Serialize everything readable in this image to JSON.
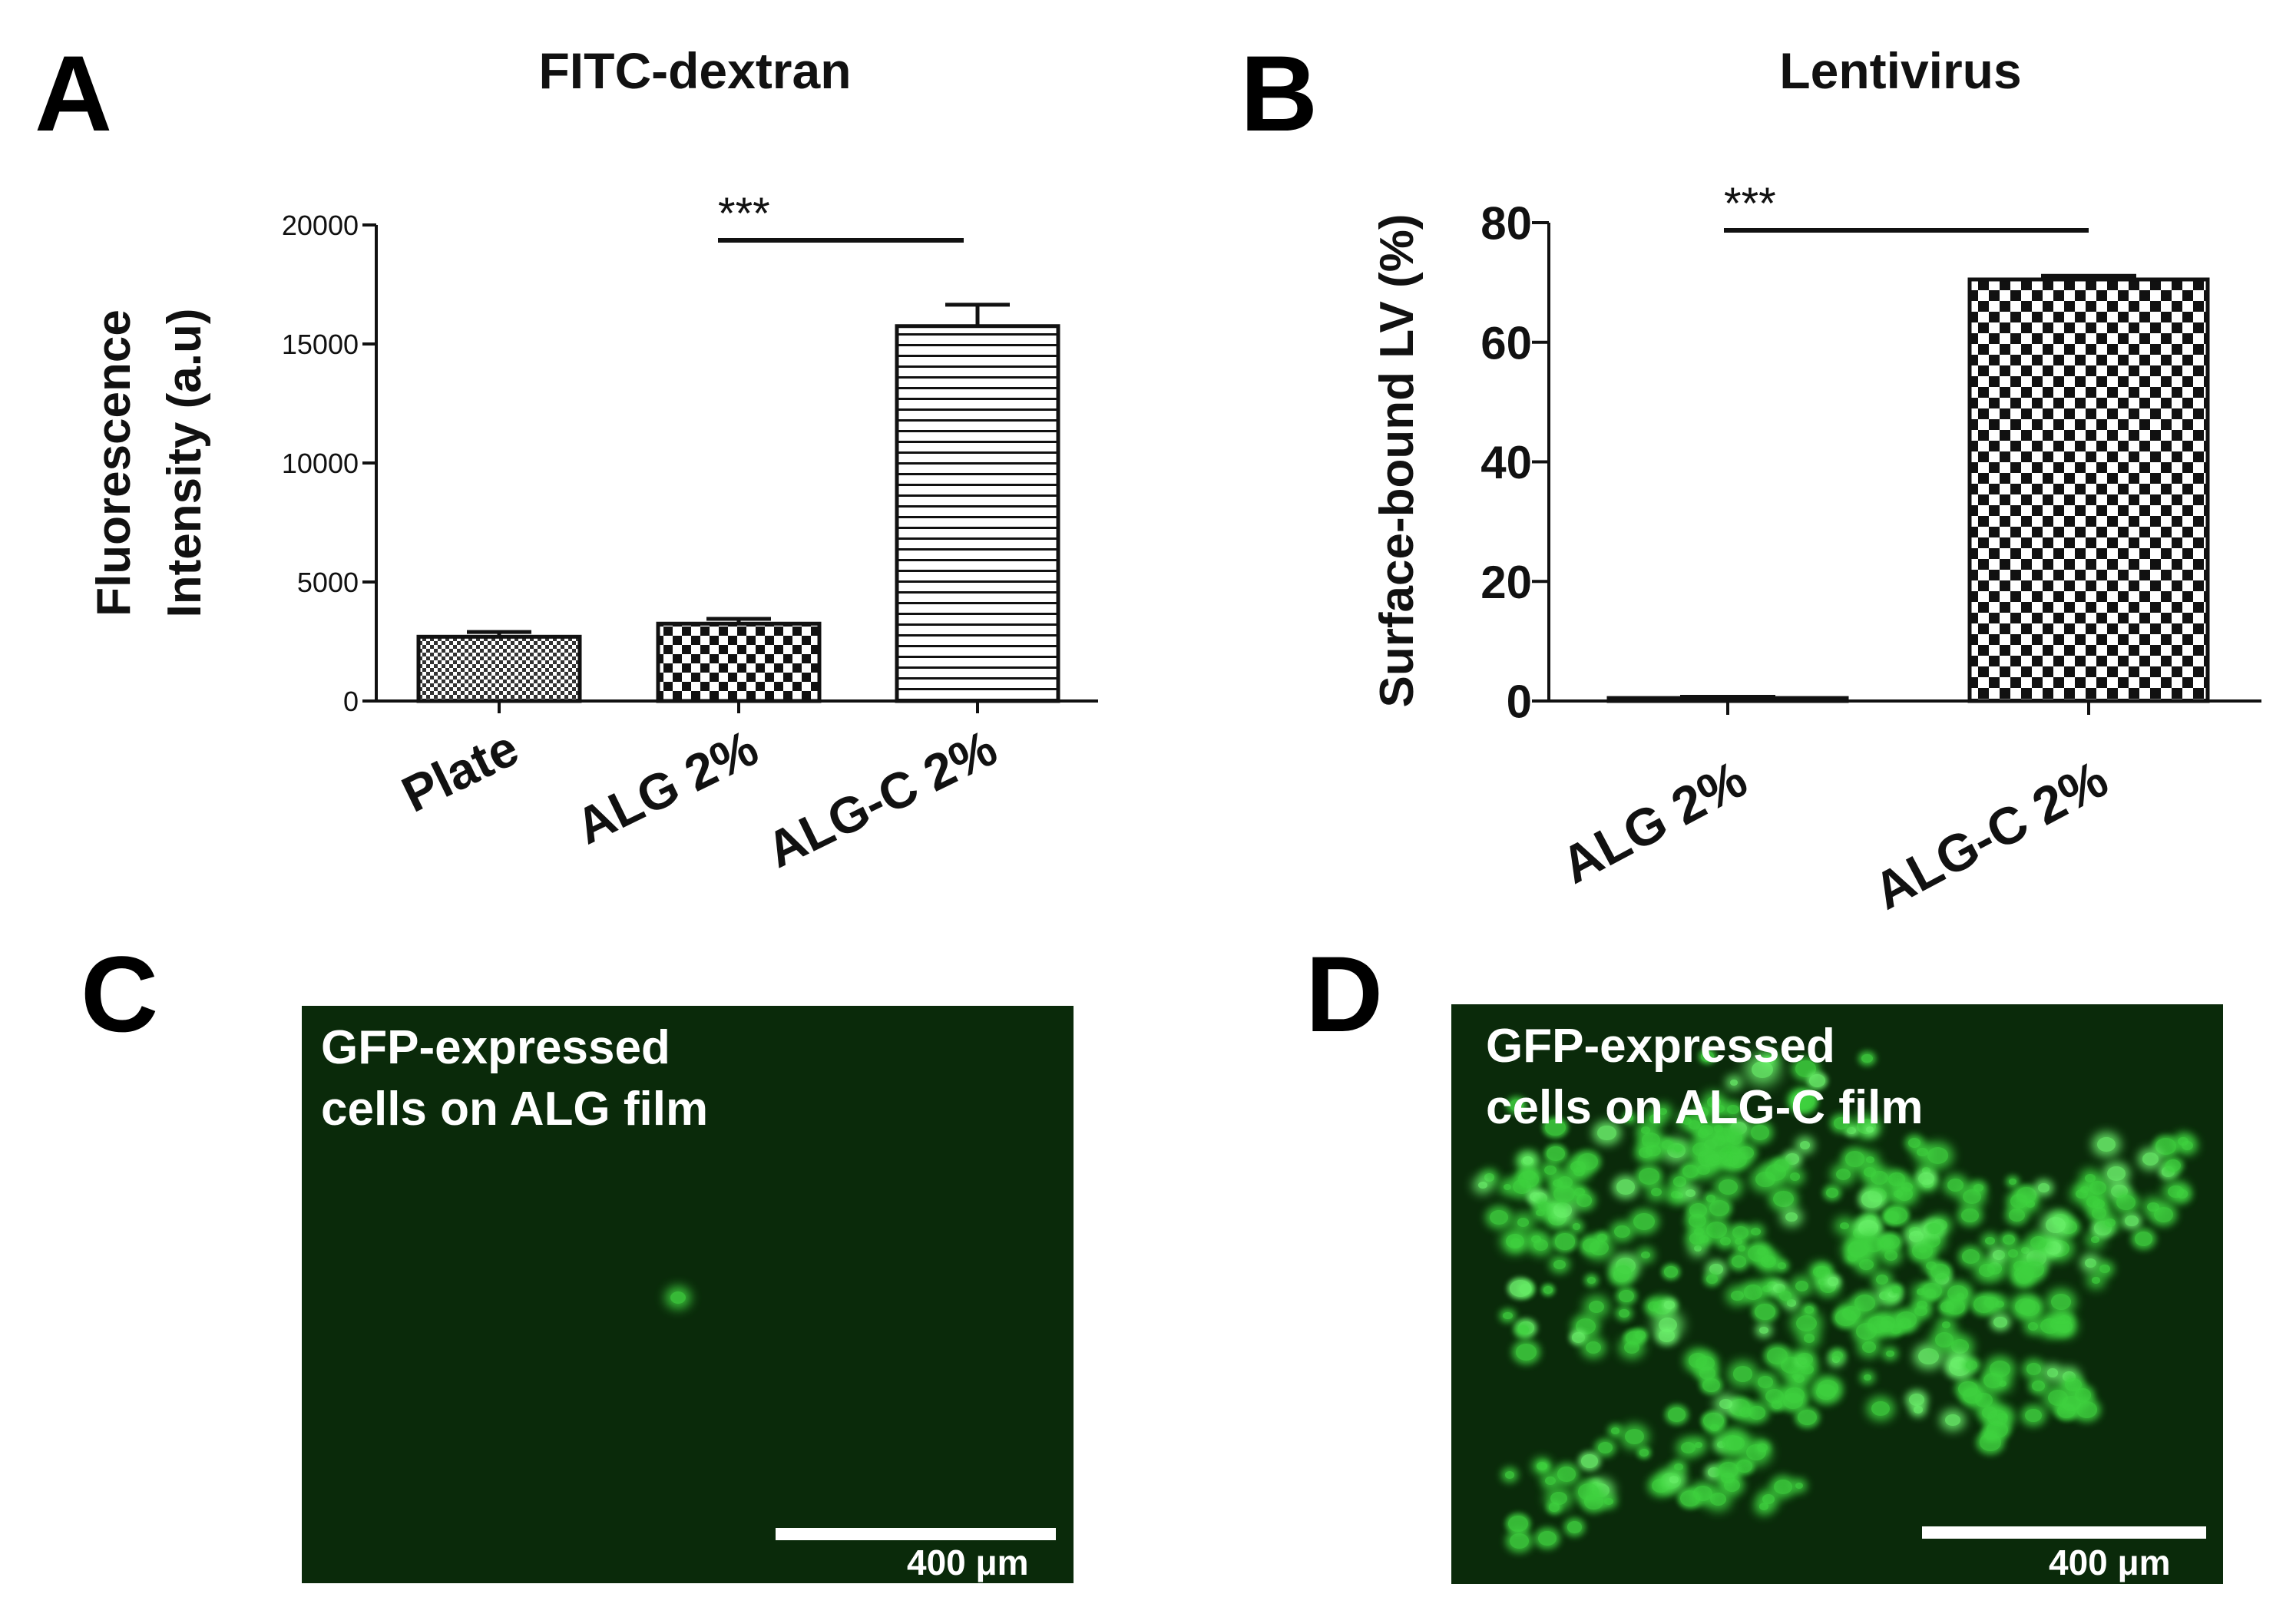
{
  "chart_data": [
    {
      "panel": "A",
      "type": "bar",
      "title": "FITC-dextran",
      "ylabel": "Fluorescence\nIntensity (a.u)",
      "xlabel": "",
      "categories": [
        "Plate",
        "ALG 2%",
        "ALG-C 2%"
      ],
      "values": [
        2700,
        3250,
        15750
      ],
      "errors": [
        200,
        200,
        900
      ],
      "ylim": [
        0,
        20000
      ],
      "yticks": [
        "0",
        "5000",
        "10000",
        "15000",
        "20000"
      ],
      "patterns": [
        "fine-dots",
        "checker",
        "horizontal-lines"
      ],
      "significance": {
        "from": 1,
        "to": 2,
        "label": "***"
      },
      "grid": false,
      "legend": "none"
    },
    {
      "panel": "B",
      "type": "bar",
      "title": "Lentivirus",
      "ylabel": "Surface-bound LV (%)",
      "xlabel": "",
      "categories": [
        "ALG 2%",
        "ALG-C 2%"
      ],
      "values": [
        0.5,
        70.5
      ],
      "errors": [
        0.2,
        0.6
      ],
      "ylim": [
        0,
        80
      ],
      "yticks": [
        "0",
        "20",
        "40",
        "60",
        "80"
      ],
      "patterns": [
        "checker",
        "checker"
      ],
      "significance": {
        "from": 0,
        "to": 1,
        "label": "***"
      },
      "grid": false,
      "legend": "none"
    }
  ],
  "panels": {
    "A": "A",
    "B": "B",
    "C": "C",
    "D": "D"
  },
  "micrographs": {
    "c": {
      "label": "GFP-expressed\ncells on ALG film",
      "scale": "400 μm",
      "bg": "#0a2a0a"
    },
    "d": {
      "label": "GFP-expressed\ncells on ALG-C film",
      "scale": "400 μm",
      "bg": "#0b300b"
    }
  },
  "colors": {
    "cell": "#3fd23f",
    "cellBright": "#6cf26c"
  }
}
